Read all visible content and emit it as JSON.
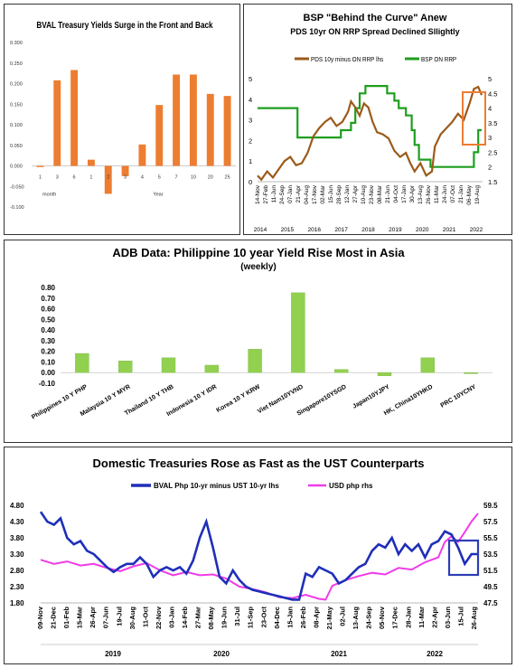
{
  "panels": {
    "bval_curve": {
      "title": "BVAL Treasury Yields Surge in the Front and Back",
      "group_labels": [
        "month",
        "Year"
      ]
    },
    "bsp": {
      "title": "BSP \"Behind the Curve\" Anew",
      "subtitle": "PDS 10yr ON RRP Spread Declined Sllightly",
      "legend": [
        "PDS 10y minus ON RRP lhs",
        "BSP ON RRP"
      ]
    },
    "adb": {
      "title": "ADB Data: Philippine 10 year Yield Rise Most in Asia",
      "subtitle": "(weekly)"
    },
    "treasuries": {
      "title": "Domestic Treasuries Rose as Fast as the UST Counterparts",
      "legend": [
        "BVAL Php 10-yr minus UST 10-yr lhs",
        "USD php rhs"
      ]
    }
  },
  "colors": {
    "orange_bar": "#ED7D31",
    "brown_line": "#9B5A1A",
    "green_line": "#1E9E1E",
    "lime_bar": "#92D050",
    "blue_line": "#1F2FB8",
    "magenta_line": "#F03CE8",
    "highlight_orange": "#ED7D31",
    "highlight_blue": "#2D3DB5"
  },
  "chart_data": [
    {
      "id": "bval",
      "type": "bar",
      "categories": [
        "1",
        "3",
        "6",
        "1",
        "2",
        "3",
        "4",
        "5",
        "7",
        "10",
        "20",
        "25"
      ],
      "values": [
        -0.003,
        0.208,
        0.233,
        0.015,
        -0.068,
        -0.025,
        0.052,
        0.148,
        0.222,
        0.222,
        0.175,
        0.17
      ],
      "groups": [
        {
          "label": "month",
          "from": 0,
          "to": 2
        },
        {
          "label": "Year",
          "from": 3,
          "to": 11
        }
      ],
      "yticks": [
        "0.300",
        "0.250",
        "0.200",
        "0.150",
        "0.100",
        "0.050",
        "0.000",
        "-0.050",
        "-0.100"
      ],
      "ylim": [
        -0.1,
        0.3
      ]
    },
    {
      "id": "bsp",
      "type": "line",
      "xticks": [
        "14-Nov",
        "27-Feb",
        "11-Jun",
        "24-Sep",
        "07-Jan",
        "21-Apr",
        "04-Aug",
        "17-Nov",
        "02-Mar",
        "15-Jun",
        "28-Sep",
        "12-Jan",
        "27-Apr",
        "10-Aug",
        "23-Nov",
        "08-Mar",
        "21-Jun",
        "04-Oct",
        "17-Jan",
        "30-Apr",
        "13-Aug",
        "26-Nov",
        "11-Mar",
        "24-Jun",
        "07-Oct",
        "21-Jan",
        "06-May",
        "19-Aug"
      ],
      "years": [
        "2014",
        "2015",
        "2016",
        "2017",
        "2018",
        "2019",
        "2020",
        "2021",
        "2022"
      ],
      "ylim_left": [
        0,
        5
      ],
      "ylim_right": [
        1.5,
        5
      ],
      "yticks_left": [
        "5",
        "4",
        "3",
        "2",
        "1",
        "0"
      ],
      "yticks_right": [
        "5",
        "4.5",
        "4",
        "3.5",
        "3",
        "2.5",
        "2",
        "1.5"
      ],
      "series": [
        {
          "name": "PDS 10y minus ON RRP lhs",
          "axis": "left",
          "x": [
            2014.87,
            2015.0,
            2015.2,
            2015.4,
            2015.6,
            2015.8,
            2016.0,
            2016.2,
            2016.4,
            2016.6,
            2016.8,
            2017.0,
            2017.2,
            2017.4,
            2017.6,
            2017.8,
            2018.0,
            2018.1,
            2018.25,
            2018.4,
            2018.55,
            2018.7,
            2018.85,
            2019.0,
            2019.2,
            2019.4,
            2019.6,
            2019.8,
            2020.0,
            2020.15,
            2020.3,
            2020.5,
            2020.7,
            2020.9,
            2021.0,
            2021.2,
            2021.4,
            2021.6,
            2021.8,
            2022.0,
            2022.2,
            2022.35,
            2022.5,
            2022.62
          ],
          "y": [
            0.3,
            0.1,
            0.5,
            0.2,
            0.6,
            1.0,
            1.2,
            0.8,
            0.9,
            1.4,
            2.2,
            2.6,
            2.9,
            3.1,
            2.7,
            2.9,
            3.4,
            3.9,
            3.6,
            3.2,
            3.8,
            3.6,
            2.9,
            2.4,
            2.3,
            2.1,
            1.5,
            1.2,
            1.4,
            0.9,
            0.5,
            0.9,
            0.3,
            0.5,
            1.7,
            2.3,
            2.6,
            2.9,
            3.3,
            3.0,
            3.8,
            4.5,
            4.6,
            4.2
          ]
        },
        {
          "name": "BSP ON RRP",
          "axis": "right",
          "x": [
            2014.87,
            2016.25,
            2016.25,
            2017.75,
            2017.75,
            2018.1,
            2018.1,
            2018.25,
            2018.25,
            2018.4,
            2018.4,
            2018.6,
            2018.6,
            2019.35,
            2019.35,
            2019.6,
            2019.6,
            2019.75,
            2019.75,
            2020.0,
            2020.0,
            2020.2,
            2020.2,
            2020.3,
            2020.3,
            2020.45,
            2020.45,
            2020.85,
            2020.85,
            2022.35,
            2022.35,
            2022.5,
            2022.5,
            2022.62
          ],
          "y": [
            4.0,
            4.0,
            3.0,
            3.0,
            3.25,
            3.25,
            3.5,
            3.5,
            4.0,
            4.0,
            4.5,
            4.5,
            4.75,
            4.75,
            4.5,
            4.5,
            4.25,
            4.25,
            4.0,
            4.0,
            3.75,
            3.75,
            3.25,
            3.25,
            2.75,
            2.75,
            2.25,
            2.25,
            2.0,
            2.0,
            2.5,
            2.5,
            3.25,
            3.25
          ]
        }
      ]
    },
    {
      "id": "adb",
      "type": "bar",
      "categories": [
        "Philippines 10 Y PHP",
        "Malaysia 10 Y MYR",
        "Thailand 10 Y THB",
        "Indonesia 10 Y IDR",
        "Korea 10 Y KRW",
        "Viet Nam10YVND",
        "Singapore10YSGD",
        "Japan10YJPY",
        "HK, China10YHKD",
        "PRC 10YCNY"
      ],
      "values": [
        0.18,
        0.11,
        0.14,
        0.07,
        0.22,
        0.75,
        0.03,
        -0.03,
        0.14,
        -0.01
      ],
      "yticks": [
        "0.80",
        "0.70",
        "0.60",
        "0.50",
        "0.40",
        "0.30",
        "0.20",
        "0.10",
        "0.00",
        "-0.10"
      ],
      "ylim": [
        -0.1,
        0.8
      ]
    },
    {
      "id": "treasuries",
      "type": "line",
      "xticks": [
        "09-Nov",
        "21-Dec",
        "01-Feb",
        "15-Mar",
        "26-Apr",
        "07-Jun",
        "19-Jul",
        "30-Aug",
        "11-Oct",
        "22-Nov",
        "03-Jan",
        "14-Feb",
        "27-Mar",
        "08-May",
        "19-Jun",
        "31-Jul",
        "11-Sep",
        "23-Oct",
        "04-Dec",
        "15-Jan",
        "26-Feb",
        "08-Apr",
        "21-May",
        "02-Jul",
        "13-Aug",
        "24-Sep",
        "05-Nov",
        "17-Dec",
        "28-Jan",
        "11-Mar",
        "22-Apr",
        "03-Jun",
        "15-Jul",
        "26-Aug"
      ],
      "years": [
        "2019",
        "2020",
        "2021",
        "2022"
      ],
      "ylim_left": [
        1.8,
        4.8
      ],
      "ylim_right": [
        47.5,
        59.5
      ],
      "yticks_left": [
        "4.80",
        "4.30",
        "3.80",
        "3.30",
        "2.80",
        "2.30",
        "1.80"
      ],
      "yticks_right": [
        "59.5",
        "57.5",
        "55.5",
        "53.5",
        "51.5",
        "49.5",
        "47.5"
      ],
      "series": [
        {
          "name": "BVAL Php 10-yr minus UST 10-yr lhs",
          "axis": "left",
          "x": [
            0,
            0.5,
            1,
            1.5,
            2,
            2.5,
            3,
            3.5,
            4,
            4.5,
            5,
            5.5,
            6,
            6.5,
            7,
            7.5,
            8,
            8.5,
            9,
            9.5,
            10,
            10.5,
            11,
            11.5,
            12,
            12.5,
            13,
            13.5,
            14,
            14.5,
            15,
            15.5,
            16,
            16.5,
            17,
            17.5,
            18,
            18.5,
            19,
            19.5,
            20,
            20.5,
            21,
            21.5,
            22,
            22.5,
            23,
            23.5,
            24,
            24.5,
            25,
            25.5,
            26,
            26.5,
            27,
            27.5,
            28,
            28.5,
            29,
            29.5,
            30,
            30.5,
            31,
            31.5,
            32,
            32.5,
            33
          ],
          "y": [
            4.6,
            4.3,
            4.2,
            4.4,
            3.8,
            3.6,
            3.7,
            3.4,
            3.3,
            3.1,
            2.9,
            2.75,
            2.9,
            3.0,
            3.0,
            3.2,
            3.0,
            2.6,
            2.8,
            2.9,
            2.8,
            2.9,
            2.7,
            3.1,
            3.8,
            4.3,
            3.5,
            2.6,
            2.4,
            2.8,
            2.5,
            2.3,
            2.2,
            2.15,
            2.1,
            2.05,
            2.0,
            1.95,
            1.9,
            1.9,
            2.7,
            2.6,
            2.9,
            2.8,
            2.7,
            2.4,
            2.5,
            2.7,
            2.9,
            3.0,
            3.4,
            3.6,
            3.5,
            3.8,
            3.3,
            3.6,
            3.4,
            3.6,
            3.2,
            3.6,
            3.7,
            4.0,
            3.9,
            3.5,
            3.0,
            3.3,
            3.3
          ]
        },
        {
          "name": "USD php rhs",
          "axis": "right",
          "x": [
            0,
            1,
            2,
            3,
            4,
            5,
            6,
            7,
            8,
            9,
            10,
            11,
            12,
            13,
            14,
            15,
            16,
            17,
            18,
            19,
            20,
            21,
            21.5,
            22,
            23,
            24,
            25,
            26,
            27,
            28,
            29,
            30,
            30.5,
            31,
            31.5,
            32,
            32.5,
            33
          ],
          "y": [
            52.8,
            52.3,
            52.6,
            52.1,
            52.3,
            51.8,
            51.4,
            52.0,
            52.4,
            51.5,
            50.9,
            51.3,
            50.9,
            51.0,
            50.5,
            49.5,
            49.2,
            48.8,
            48.2,
            48.1,
            48.5,
            48.0,
            47.9,
            49.6,
            50.3,
            50.8,
            51.2,
            51.0,
            51.8,
            51.6,
            52.5,
            53.1,
            55.0,
            55.7,
            55.0,
            56.2,
            57.5,
            58.5
          ]
        }
      ]
    }
  ]
}
